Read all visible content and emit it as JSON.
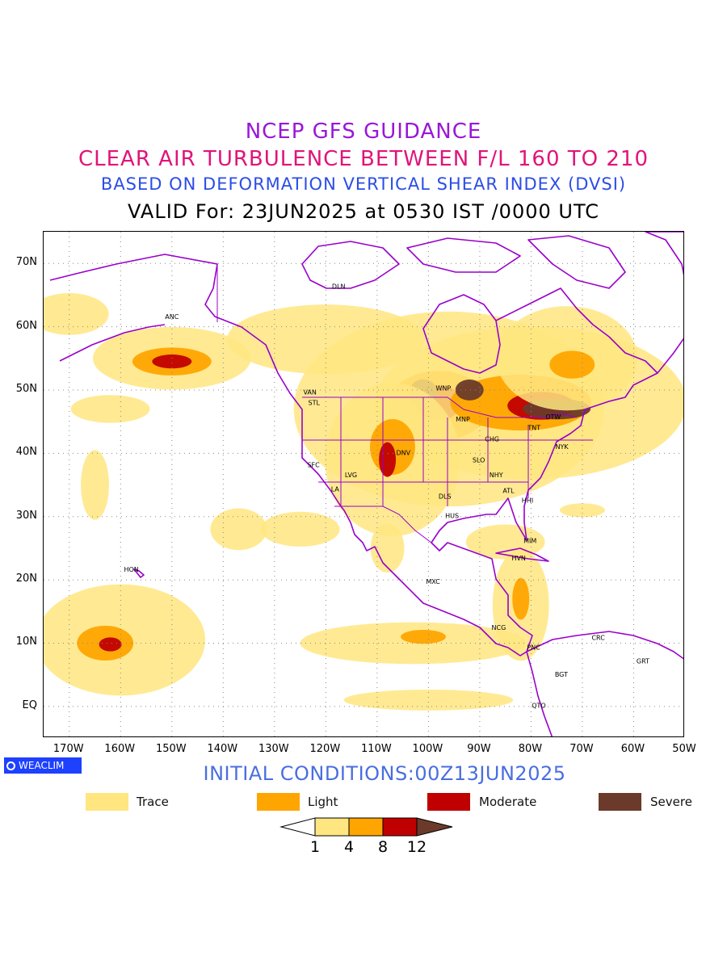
{
  "title": {
    "line1": "NCEP GFS GUIDANCE",
    "line2": "CLEAR AIR TURBULENCE BETWEEN F/L 160 TO 210",
    "line3": "BASED ON DEFORMATION VERTICAL SHEAR INDEX (DVSI)",
    "line4": "VALID For: 23JUN2025 at 0530 IST /0000 UTC"
  },
  "colors": {
    "line1": "#9a16d8",
    "line2": "#e0147a",
    "line3": "#2b4de6",
    "trace": "#ffe680",
    "light": "#ffa500",
    "moderate": "#c00000",
    "severe": "#6b3a2a",
    "coast": "#9900cc"
  },
  "lat_labels": [
    "70N",
    "60N",
    "50N",
    "40N",
    "30N",
    "20N",
    "10N",
    "EQ"
  ],
  "lon_labels": [
    "170W",
    "160W",
    "150W",
    "140W",
    "130W",
    "120W",
    "110W",
    "100W",
    "90W",
    "80W",
    "70W",
    "60W",
    "50W"
  ],
  "stations": [
    {
      "code": "DLN",
      "lon": -117.5,
      "lat": 66
    },
    {
      "code": "ANC",
      "lon": -150,
      "lat": 61.2
    },
    {
      "code": "VAN",
      "lon": -123.1,
      "lat": 49.3
    },
    {
      "code": "STL",
      "lon": -122.3,
      "lat": 47.6
    },
    {
      "code": "WNP",
      "lon": -97.1,
      "lat": 49.9
    },
    {
      "code": "OTW",
      "lon": -75.7,
      "lat": 45.4
    },
    {
      "code": "TNT",
      "lon": -79.4,
      "lat": 43.7
    },
    {
      "code": "MNP",
      "lon": -93.3,
      "lat": 45
    },
    {
      "code": "CHG",
      "lon": -87.6,
      "lat": 41.9
    },
    {
      "code": "NYK",
      "lon": -74,
      "lat": 40.7
    },
    {
      "code": "DNV",
      "lon": -104.9,
      "lat": 39.7
    },
    {
      "code": "SFC",
      "lon": -122.4,
      "lat": 37.8
    },
    {
      "code": "SLO",
      "lon": -90.2,
      "lat": 38.6
    },
    {
      "code": "LVG",
      "lon": -115.1,
      "lat": 36.2
    },
    {
      "code": "NHY",
      "lon": -86.8,
      "lat": 36.2
    },
    {
      "code": "LA",
      "lon": -118.2,
      "lat": 34
    },
    {
      "code": "DLS",
      "lon": -96.8,
      "lat": 32.8
    },
    {
      "code": "ATL",
      "lon": -84.4,
      "lat": 33.7
    },
    {
      "code": "HHI",
      "lon": -80.7,
      "lat": 32.2
    },
    {
      "code": "HUS",
      "lon": -95.4,
      "lat": 29.8
    },
    {
      "code": "MIM",
      "lon": -80.2,
      "lat": 25.8
    },
    {
      "code": "HVN",
      "lon": -82.4,
      "lat": 23.1
    },
    {
      "code": "HON",
      "lon": -157.9,
      "lat": 21.3
    },
    {
      "code": "MXC",
      "lon": -99.1,
      "lat": 19.4
    },
    {
      "code": "NCG",
      "lon": -86.3,
      "lat": 12.1
    },
    {
      "code": "CRC",
      "lon": -66.9,
      "lat": 10.5
    },
    {
      "code": "PNC",
      "lon": -79.5,
      "lat": 9
    },
    {
      "code": "GRT",
      "lon": -58.2,
      "lat": 6.8
    },
    {
      "code": "BGT",
      "lon": -74.1,
      "lat": 4.7
    },
    {
      "code": "QTO",
      "lon": -78.5,
      "lat": -0.2
    }
  ],
  "turbulence": [
    {
      "lvl": "trace",
      "lon": -150,
      "lat": 55,
      "rx": 28,
      "ry": 9
    },
    {
      "lvl": "light",
      "lon": -150,
      "lat": 54.5,
      "rx": 14,
      "ry": 4
    },
    {
      "lvl": "moderate",
      "lon": -150,
      "lat": 54.5,
      "rx": 7,
      "ry": 2
    },
    {
      "lvl": "trace",
      "lon": -160,
      "lat": 10.5,
      "rx": 30,
      "ry": 16
    },
    {
      "lvl": "light",
      "lon": -163,
      "lat": 10,
      "rx": 10,
      "ry": 5
    },
    {
      "lvl": "moderate",
      "lon": -162,
      "lat": 9.8,
      "rx": 4,
      "ry": 2
    },
    {
      "lvl": "trace",
      "lon": -96,
      "lat": 47,
      "rx": 55,
      "ry": 28
    },
    {
      "lvl": "light",
      "lon": -98,
      "lat": 47.5,
      "rx": 18,
      "ry": 10
    },
    {
      "lvl": "moderate",
      "lon": -98,
      "lat": 48,
      "rx": 8,
      "ry": 5
    },
    {
      "lvl": "severe",
      "lon": -101,
      "lat": 49.5,
      "rx": 5,
      "ry": 4
    },
    {
      "lvl": "trace",
      "lon": -80,
      "lat": 48,
      "rx": 55,
      "ry": 22
    },
    {
      "lvl": "light",
      "lon": -82,
      "lat": 48,
      "rx": 25,
      "ry": 8
    },
    {
      "lvl": "moderate",
      "lon": -78,
      "lat": 47.5,
      "rx": 12,
      "ry": 4
    },
    {
      "lvl": "severe",
      "lon": -75,
      "lat": 47,
      "rx": 12,
      "ry": 3
    },
    {
      "lvl": "severe",
      "lon": -92,
      "lat": 50,
      "rx": 5,
      "ry": 3
    },
    {
      "lvl": "trace",
      "lon": -73,
      "lat": 55,
      "rx": 25,
      "ry": 15
    },
    {
      "lvl": "light",
      "lon": -72,
      "lat": 54,
      "rx": 8,
      "ry": 4
    },
    {
      "lvl": "trace",
      "lon": -107,
      "lat": 39,
      "rx": 24,
      "ry": 22
    },
    {
      "lvl": "light",
      "lon": -107,
      "lat": 41,
      "rx": 8,
      "ry": 8
    },
    {
      "lvl": "moderate",
      "lon": -108,
      "lat": 39,
      "rx": 3,
      "ry": 5
    },
    {
      "lvl": "trace",
      "lon": -120,
      "lat": 58,
      "rx": 35,
      "ry": 10
    },
    {
      "lvl": "trace",
      "lon": -125,
      "lat": 28,
      "rx": 14,
      "ry": 5
    },
    {
      "lvl": "trace",
      "lon": -137,
      "lat": 28,
      "rx": 10,
      "ry": 6
    },
    {
      "lvl": "trace",
      "lon": -103,
      "lat": 10,
      "rx": 40,
      "ry": 6
    },
    {
      "lvl": "light",
      "lon": -101,
      "lat": 11,
      "rx": 8,
      "ry": 2
    },
    {
      "lvl": "trace",
      "lon": -82,
      "lat": 16,
      "rx": 10,
      "ry": 16
    },
    {
      "lvl": "light",
      "lon": -82,
      "lat": 17,
      "rx": 3,
      "ry": 6
    },
    {
      "lvl": "trace",
      "lon": -100,
      "lat": 1,
      "rx": 30,
      "ry": 3
    },
    {
      "lvl": "trace",
      "lon": -108,
      "lat": 25,
      "rx": 6,
      "ry": 7
    },
    {
      "lvl": "trace",
      "lon": -85,
      "lat": 26,
      "rx": 14,
      "ry": 5
    },
    {
      "lvl": "trace",
      "lon": -170,
      "lat": 62,
      "rx": 14,
      "ry": 6
    },
    {
      "lvl": "trace",
      "lon": -162,
      "lat": 47,
      "rx": 14,
      "ry": 4
    },
    {
      "lvl": "trace",
      "lon": -70,
      "lat": 31,
      "rx": 8,
      "ry": 2
    },
    {
      "lvl": "trace",
      "lon": -165,
      "lat": 35,
      "rx": 5,
      "ry": 10
    }
  ],
  "legend": {
    "trace": "Trace",
    "light": "Light",
    "moderate": "Moderate",
    "severe": "Severe"
  },
  "colorbar_ticks": [
    "1",
    "4",
    "8",
    "12"
  ],
  "initial_conditions": "INITIAL CONDITIONS:00Z13JUN2025",
  "logo_text": "WEACLIM"
}
